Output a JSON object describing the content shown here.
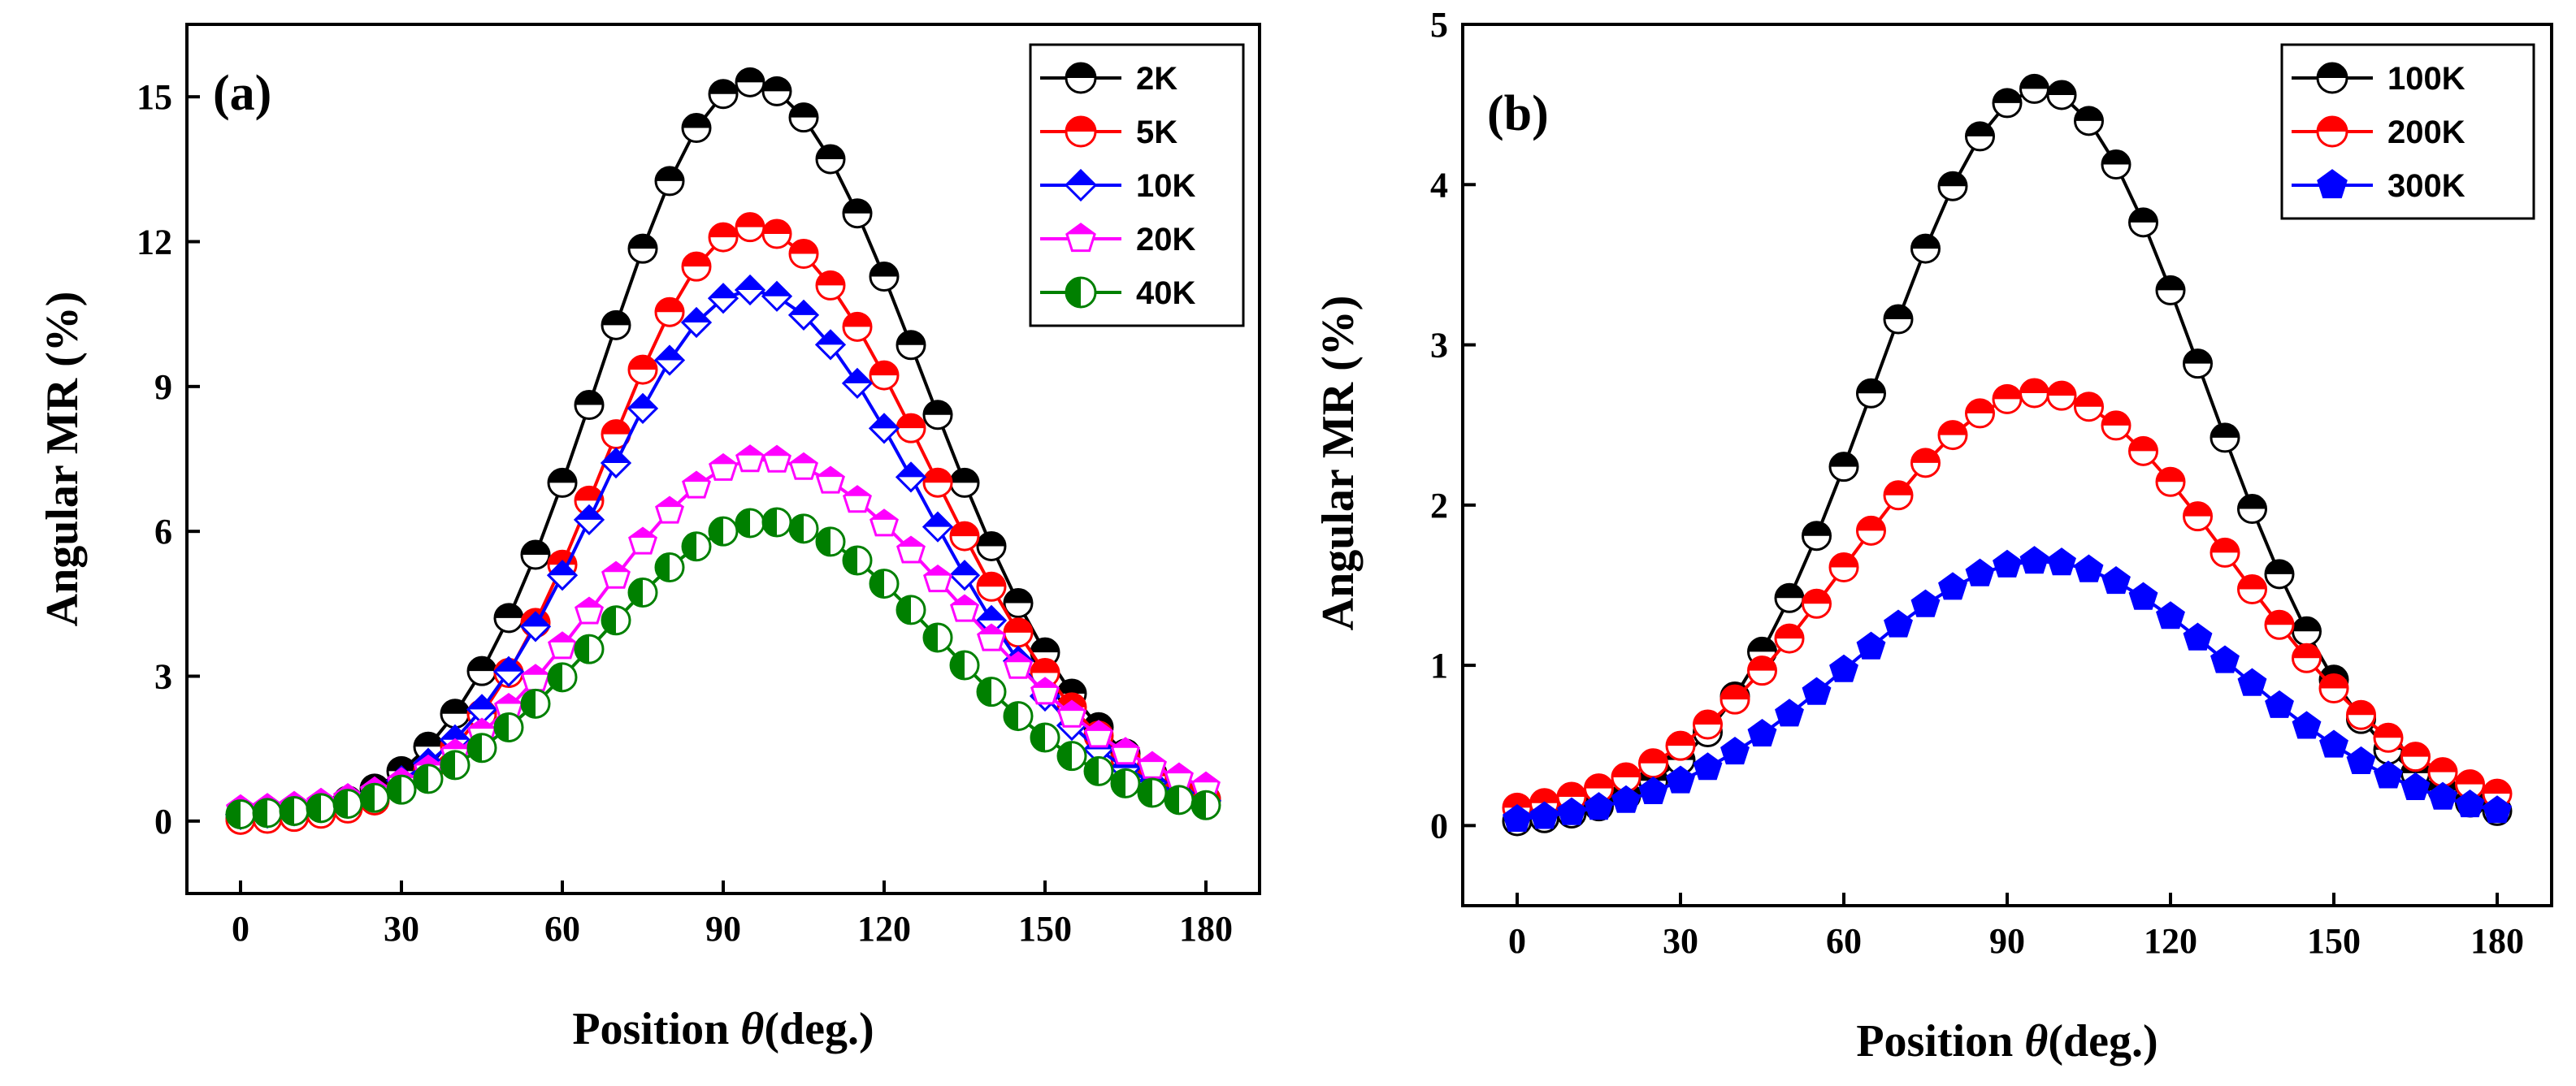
{
  "chart_data": [
    {
      "type": "line",
      "panel_label": "(a)",
      "xlabel_prefix": "Position ",
      "xlabel_symbol": "θ",
      "xlabel_suffix": "(deg.)",
      "ylabel": "Angular MR (%)",
      "xlim": [
        -10,
        190
      ],
      "ylim": [
        -1.5,
        16.5
      ],
      "xticks": [
        0,
        30,
        60,
        90,
        120,
        150,
        180
      ],
      "yticks": [
        0,
        3,
        6,
        9,
        12,
        15
      ],
      "legend_position": "top-right",
      "x": [
        0,
        5,
        10,
        15,
        20,
        25,
        30,
        35,
        40,
        45,
        50,
        55,
        60,
        65,
        70,
        75,
        80,
        85,
        90,
        95,
        100,
        105,
        110,
        115,
        120,
        125,
        130,
        135,
        140,
        145,
        150,
        155,
        160,
        165,
        170,
        175,
        180
      ],
      "series": [
        {
          "name": "2K",
          "color": "#000000",
          "marker": "circle",
          "peak": 15.3,
          "center": 95,
          "sigmaL": 28,
          "sigmaR": 32,
          "base": 0
        },
        {
          "name": "5K",
          "color": "#ff0000",
          "marker": "circle",
          "peak": 12.3,
          "center": 95,
          "sigmaL": 27,
          "sigmaR": 33,
          "base": 0
        },
        {
          "name": "10K",
          "color": "#0000ff",
          "marker": "diamond",
          "peak": 11.0,
          "center": 95,
          "sigmaL": 28,
          "sigmaR": 32,
          "base": 0.1
        },
        {
          "name": "20K",
          "color": "#ff00ff",
          "marker": "pentagon",
          "peak": 7.5,
          "center": 97,
          "sigmaL": 30,
          "sigmaR": 36,
          "base": 0.2
        },
        {
          "name": "40K",
          "color": "#008000",
          "marker": "circle",
          "peak": 6.2,
          "center": 98,
          "sigmaL": 31,
          "sigmaR": 32,
          "base": 0.1
        }
      ]
    },
    {
      "type": "line",
      "panel_label": "(b)",
      "xlabel_prefix": "Position ",
      "xlabel_symbol": "θ",
      "xlabel_suffix": "(deg.)",
      "ylabel": "Angular MR (%)",
      "xlim": [
        -10,
        190
      ],
      "ylim": [
        -0.5,
        5.0
      ],
      "xticks": [
        0,
        30,
        60,
        90,
        120,
        150,
        180
      ],
      "yticks": [
        0,
        1,
        2,
        3,
        4,
        5
      ],
      "legend_position": "top-right",
      "x": [
        0,
        5,
        10,
        15,
        20,
        25,
        30,
        35,
        40,
        45,
        50,
        55,
        60,
        65,
        70,
        75,
        80,
        85,
        90,
        95,
        100,
        105,
        110,
        115,
        120,
        125,
        130,
        135,
        140,
        145,
        150,
        155,
        160,
        165,
        170,
        175,
        180
      ],
      "series": [
        {
          "name": "100K",
          "color": "#000000",
          "marker": "circle",
          "peak": 4.6,
          "center": 96,
          "sigmaL": 30,
          "sigmaR": 30,
          "base": 0
        },
        {
          "name": "200K",
          "color": "#ff0000",
          "marker": "circle",
          "peak": 2.7,
          "center": 96,
          "sigmaL": 35,
          "sigmaR": 35,
          "base": 0.05
        },
        {
          "name": "300K",
          "color": "#0000ff",
          "marker": "pentagon",
          "peak": 1.65,
          "center": 96,
          "sigmaL": 35,
          "sigmaR": 35,
          "base": 0
        }
      ]
    }
  ]
}
